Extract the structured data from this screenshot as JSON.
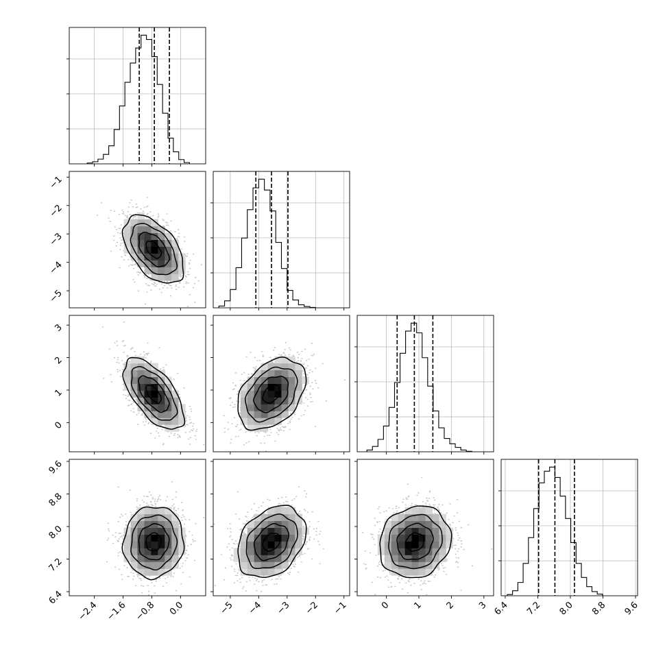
{
  "chart_data": {
    "type": "corner",
    "title": "",
    "colors": {
      "line": "#000000",
      "grid": "#b0b0b0",
      "scatter": "#9a9a9a"
    },
    "grid": true,
    "parameters": [
      {
        "index": 0,
        "label": "",
        "range": [
          -3.1,
          0.7
        ],
        "ticks": [
          "-2.4",
          "-1.6",
          "-0.8",
          "0.0"
        ],
        "tick_values": [
          -2.4,
          -1.6,
          -0.8,
          0.0
        ],
        "quantiles": [
          -1.15,
          -0.73,
          -0.31
        ]
      },
      {
        "index": 1,
        "label": "",
        "range": [
          -5.6,
          -0.8
        ],
        "ticks": [
          "-5",
          "-4",
          "-3",
          "-2",
          "-1"
        ],
        "tick_values": [
          -5,
          -4,
          -3,
          -2,
          -1
        ],
        "quantiles": [
          -4.1,
          -3.55,
          -2.97
        ]
      },
      {
        "index": 2,
        "label": "",
        "range": [
          -0.9,
          3.3
        ],
        "ticks": [
          "0",
          "1",
          "2",
          "3"
        ],
        "tick_values": [
          0,
          1,
          2,
          3
        ],
        "quantiles": [
          0.33,
          0.86,
          1.43
        ]
      },
      {
        "index": 3,
        "label": "",
        "range": [
          6.3,
          9.65
        ],
        "ticks": [
          "6.4",
          "7.2",
          "8.0",
          "8.8",
          "9.6"
        ],
        "tick_values": [
          6.4,
          7.2,
          8.0,
          8.8,
          9.6
        ],
        "quantiles": [
          7.22,
          7.62,
          8.1
        ]
      }
    ],
    "histograms": [
      {
        "param": 0,
        "edges_start": -2.6,
        "bin_width": 0.15,
        "counts": [
          2,
          5,
          11,
          22,
          42,
          80,
          135,
          190,
          235,
          270,
          300,
          290,
          250,
          185,
          118,
          60,
          28,
          10,
          3
        ]
      },
      {
        "param": 1,
        "edges_start": -5.4,
        "bin_width": 0.2,
        "counts": [
          4,
          16,
          42,
          92,
          160,
          225,
          275,
          295,
          270,
          222,
          150,
          90,
          40,
          18,
          7,
          3,
          1
        ]
      },
      {
        "param": 2,
        "edges_start": -0.6,
        "bin_width": 0.17,
        "counts": [
          4,
          12,
          28,
          58,
          100,
          156,
          222,
          272,
          290,
          268,
          212,
          148,
          92,
          54,
          30,
          18,
          10,
          4,
          1
        ]
      },
      {
        "param": 3,
        "edges_start": 6.45,
        "bin_width": 0.13,
        "counts": [
          3,
          12,
          32,
          78,
          140,
          210,
          272,
          300,
          310,
          285,
          240,
          186,
          128,
          78,
          44,
          22,
          10,
          4
        ]
      }
    ],
    "pairs": [
      {
        "x": 0,
        "y": 1,
        "mean": [
          -0.75,
          -3.55
        ],
        "sd": [
          0.42,
          0.6
        ],
        "corr": -0.5
      },
      {
        "x": 0,
        "y": 2,
        "mean": [
          -0.75,
          0.88
        ],
        "sd": [
          0.42,
          0.55
        ],
        "corr": -0.62
      },
      {
        "x": 1,
        "y": 2,
        "mean": [
          -3.55,
          0.88
        ],
        "sd": [
          0.6,
          0.55
        ],
        "corr": 0.38
      },
      {
        "x": 0,
        "y": 3,
        "mean": [
          -0.75,
          7.62
        ],
        "sd": [
          0.42,
          0.44
        ],
        "corr": 0.05
      },
      {
        "x": 1,
        "y": 3,
        "mean": [
          -3.55,
          7.62
        ],
        "sd": [
          0.6,
          0.44
        ],
        "corr": 0.3
      },
      {
        "x": 2,
        "y": 3,
        "mean": [
          0.88,
          7.62
        ],
        "sd": [
          0.55,
          0.44
        ],
        "corr": 0.12
      }
    ],
    "contour_levels_sigma": [
      0.5,
      1.0,
      1.5,
      2.0
    ]
  }
}
